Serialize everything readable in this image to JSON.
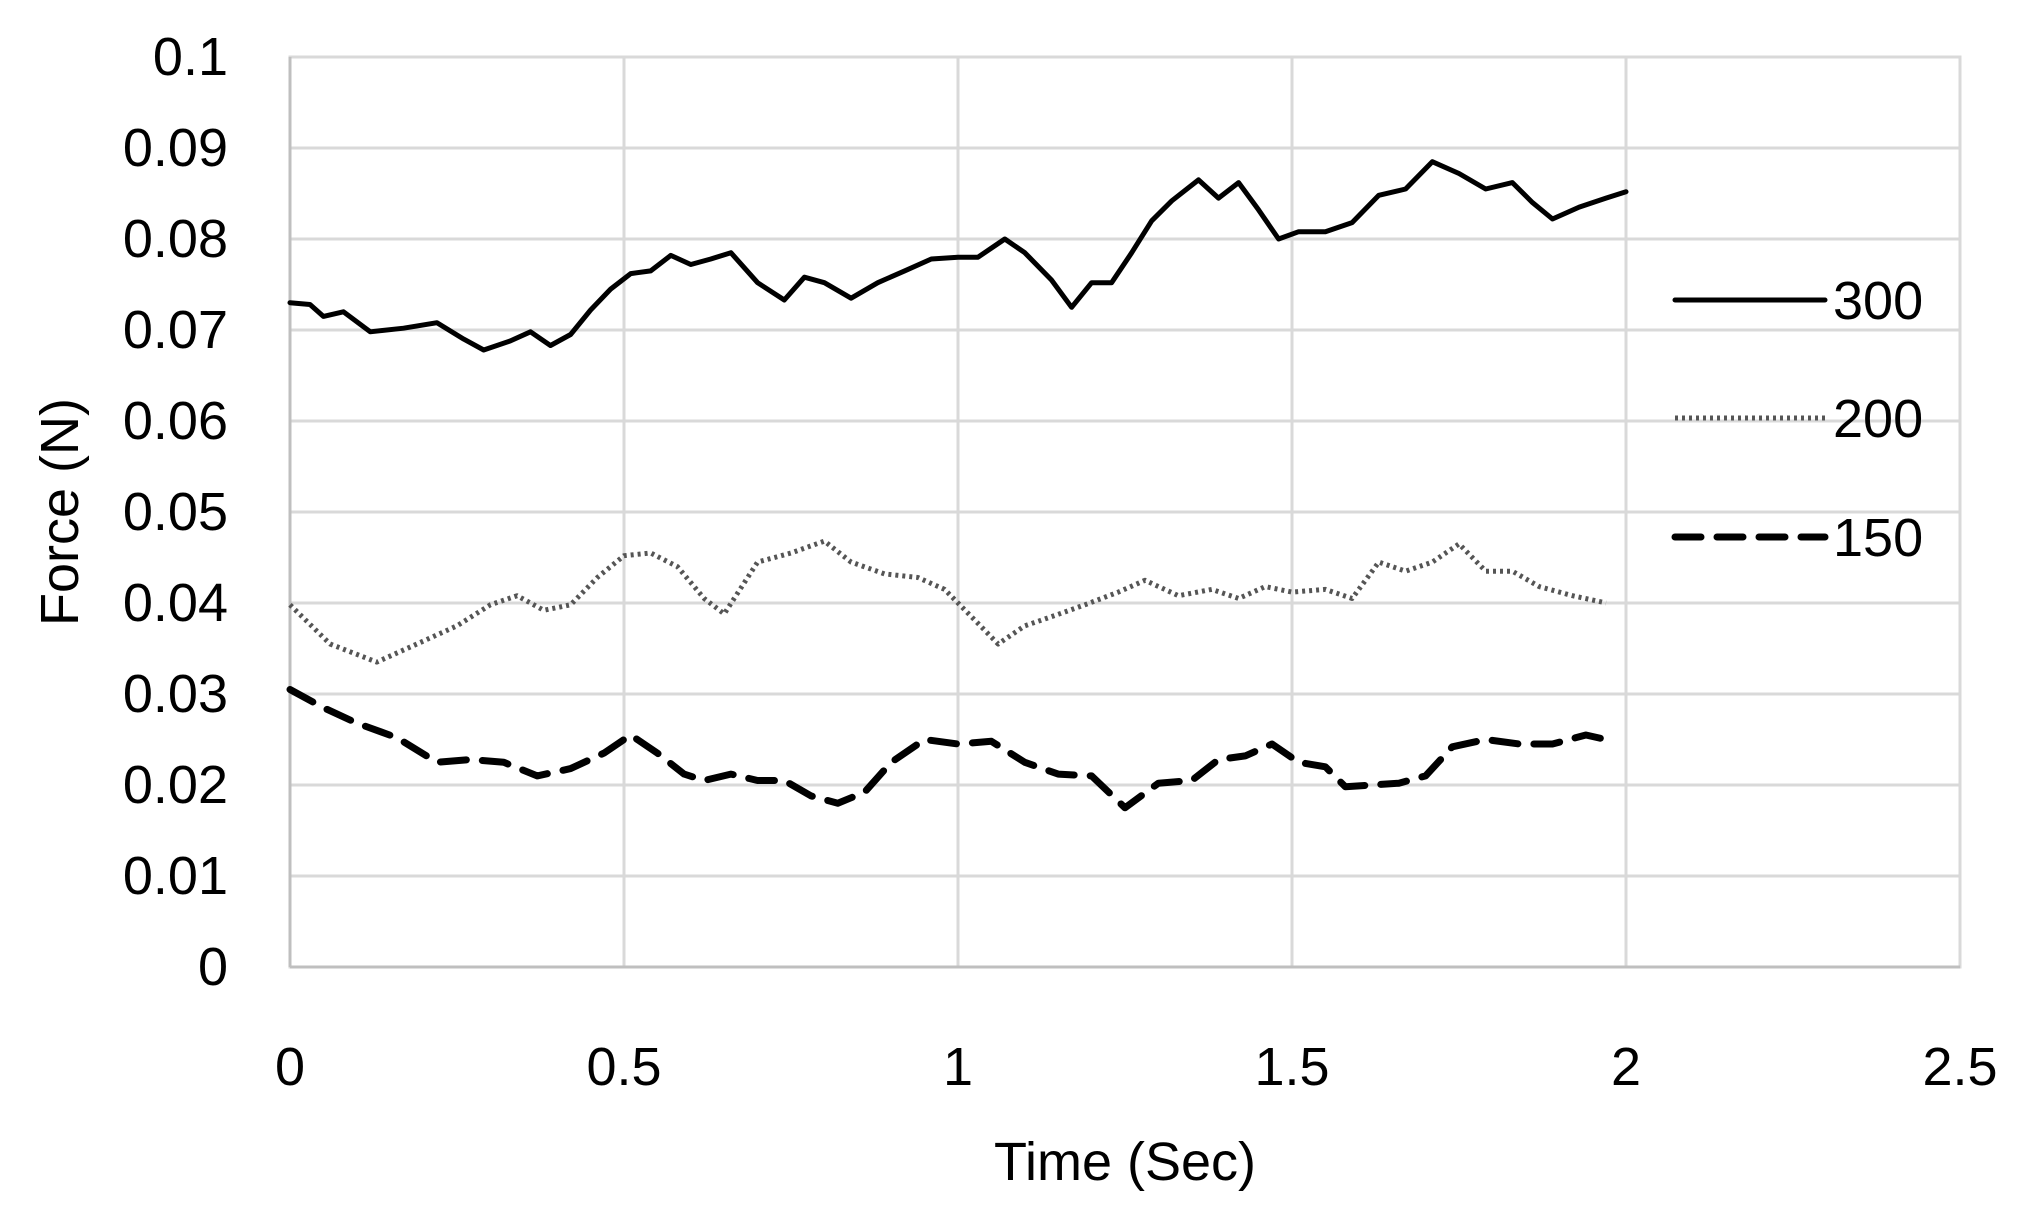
{
  "chart_data": {
    "type": "line",
    "title": "",
    "xlabel": "Time (Sec)",
    "ylabel": "Force (N)",
    "xlim": [
      0,
      2.5
    ],
    "ylim": [
      0,
      0.1
    ],
    "x_ticks": [
      "0",
      "0.5",
      "1",
      "1.5",
      "2",
      "2.5"
    ],
    "y_ticks": [
      "0",
      "0.01",
      "0.02",
      "0.03",
      "0.04",
      "0.05",
      "0.06",
      "0.07",
      "0.08",
      "0.09",
      "0.1"
    ],
    "x_tick_values": [
      0,
      0.5,
      1,
      1.5,
      2,
      2.5
    ],
    "y_tick_values": [
      0,
      0.01,
      0.02,
      0.03,
      0.04,
      0.05,
      0.06,
      0.07,
      0.08,
      0.09,
      0.1
    ],
    "grid": true,
    "legend_position": "right",
    "series": [
      {
        "name": "300",
        "style": "solid",
        "color": "#000000",
        "x": [
          0,
          0.03,
          0.05,
          0.08,
          0.12,
          0.17,
          0.22,
          0.26,
          0.29,
          0.33,
          0.36,
          0.39,
          0.42,
          0.45,
          0.48,
          0.51,
          0.54,
          0.57,
          0.6,
          0.63,
          0.66,
          0.7,
          0.74,
          0.77,
          0.8,
          0.84,
          0.88,
          0.92,
          0.96,
          1.0,
          1.03,
          1.07,
          1.1,
          1.14,
          1.17,
          1.2,
          1.23,
          1.26,
          1.29,
          1.32,
          1.36,
          1.39,
          1.42,
          1.45,
          1.48,
          1.51,
          1.55,
          1.59,
          1.63,
          1.67,
          1.71,
          1.75,
          1.79,
          1.83,
          1.86,
          1.89,
          1.93,
          1.97,
          2.0
        ],
        "y": [
          0.073,
          0.0728,
          0.0715,
          0.072,
          0.0698,
          0.0702,
          0.0708,
          0.069,
          0.0678,
          0.0688,
          0.0698,
          0.0683,
          0.0695,
          0.0722,
          0.0745,
          0.0762,
          0.0765,
          0.0782,
          0.0772,
          0.0778,
          0.0785,
          0.0752,
          0.0733,
          0.0758,
          0.0752,
          0.0735,
          0.0752,
          0.0765,
          0.0778,
          0.078,
          0.078,
          0.08,
          0.0785,
          0.0755,
          0.0725,
          0.0752,
          0.0752,
          0.0785,
          0.082,
          0.0842,
          0.0865,
          0.0845,
          0.0862,
          0.0832,
          0.08,
          0.0808,
          0.0808,
          0.0818,
          0.0848,
          0.0855,
          0.0885,
          0.0872,
          0.0855,
          0.0862,
          0.084,
          0.0822,
          0.0835,
          0.0845,
          0.0852
        ]
      },
      {
        "name": "200",
        "style": "dotted",
        "color": "#555555",
        "x": [
          0,
          0.06,
          0.13,
          0.19,
          0.25,
          0.3,
          0.34,
          0.38,
          0.42,
          0.46,
          0.5,
          0.54,
          0.58,
          0.62,
          0.65,
          0.7,
          0.75,
          0.8,
          0.84,
          0.89,
          0.94,
          0.98,
          1.02,
          1.06,
          1.1,
          1.14,
          1.19,
          1.24,
          1.28,
          1.33,
          1.38,
          1.42,
          1.46,
          1.5,
          1.55,
          1.59,
          1.63,
          1.67,
          1.71,
          1.75,
          1.79,
          1.83,
          1.87,
          1.92,
          1.97
        ],
        "y": [
          0.0398,
          0.0355,
          0.0335,
          0.0355,
          0.0375,
          0.0398,
          0.0408,
          0.0392,
          0.0398,
          0.0428,
          0.0452,
          0.0455,
          0.044,
          0.0405,
          0.0388,
          0.0445,
          0.0455,
          0.0468,
          0.0445,
          0.0432,
          0.0428,
          0.0415,
          0.0385,
          0.0355,
          0.0375,
          0.0385,
          0.0398,
          0.0412,
          0.0425,
          0.0408,
          0.0415,
          0.0405,
          0.0418,
          0.0412,
          0.0415,
          0.0405,
          0.0445,
          0.0435,
          0.0445,
          0.0465,
          0.0435,
          0.0435,
          0.0418,
          0.0408,
          0.04
        ]
      },
      {
        "name": "150",
        "style": "dashed",
        "color": "#000000",
        "x": [
          0,
          0.05,
          0.1,
          0.16,
          0.22,
          0.27,
          0.32,
          0.37,
          0.42,
          0.47,
          0.51,
          0.55,
          0.59,
          0.62,
          0.66,
          0.7,
          0.74,
          0.78,
          0.82,
          0.86,
          0.9,
          0.95,
          1.0,
          1.05,
          1.1,
          1.15,
          1.2,
          1.25,
          1.3,
          1.35,
          1.39,
          1.43,
          1.47,
          1.51,
          1.55,
          1.58,
          1.62,
          1.66,
          1.7,
          1.74,
          1.79,
          1.84,
          1.89,
          1.94,
          1.97
        ],
        "y": [
          0.0305,
          0.0285,
          0.0268,
          0.0252,
          0.0225,
          0.0228,
          0.0225,
          0.021,
          0.0218,
          0.0235,
          0.0255,
          0.0235,
          0.0212,
          0.0205,
          0.0212,
          0.0205,
          0.0205,
          0.0188,
          0.018,
          0.0192,
          0.0225,
          0.025,
          0.0245,
          0.0248,
          0.0225,
          0.0212,
          0.021,
          0.0175,
          0.0202,
          0.0205,
          0.0228,
          0.0232,
          0.0245,
          0.0225,
          0.022,
          0.0198,
          0.02,
          0.0202,
          0.021,
          0.0242,
          0.025,
          0.0245,
          0.0245,
          0.0255,
          0.025
        ]
      }
    ]
  }
}
